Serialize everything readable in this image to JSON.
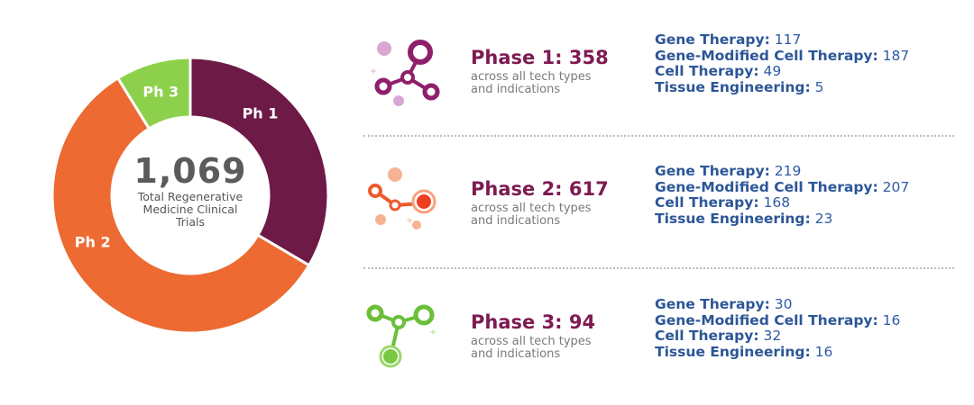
{
  "chart_data": {
    "type": "pie",
    "variant": "donut",
    "total_label": "1,069",
    "center_caption": [
      "Total Regenerative",
      "Medicine Clinical",
      "Trials"
    ],
    "categories": [
      "Ph 1",
      "Ph 2",
      "Ph 3"
    ],
    "values": [
      358,
      617,
      94
    ],
    "colors": [
      "#6d1a47",
      "#ed6a32",
      "#8dd04c"
    ]
  },
  "phases": [
    {
      "headline": "Phase 1: 358",
      "subtitle": [
        "across all tech types",
        "and indications"
      ],
      "headline_color": "#7d1b52",
      "icon": "molecule-purple-icon",
      "breakdown": [
        {
          "label": "Gene Therapy:",
          "value": "117"
        },
        {
          "label": "Gene-Modified Cell Therapy:",
          "value": "187"
        },
        {
          "label": "Cell Therapy:",
          "value": "49"
        },
        {
          "label": "Tissue Engineering:",
          "value": "5"
        }
      ]
    },
    {
      "headline": "Phase 2: 617",
      "subtitle": [
        "across all tech types",
        "and indications"
      ],
      "headline_color": "#7d1b52",
      "icon": "molecule-orange-icon",
      "breakdown": [
        {
          "label": "Gene Therapy:",
          "value": "219"
        },
        {
          "label": "Gene-Modified Cell Therapy:",
          "value": "207"
        },
        {
          "label": "Cell Therapy:",
          "value": "168"
        },
        {
          "label": "Tissue Engineering:",
          "value": "23"
        }
      ]
    },
    {
      "headline": "Phase 3: 94",
      "subtitle": [
        "across all tech types",
        "and indications"
      ],
      "headline_color": "#7d1b52",
      "icon": "molecule-green-icon",
      "breakdown": [
        {
          "label": "Gene Therapy:",
          "value": "30"
        },
        {
          "label": "Gene-Modified Cell Therapy:",
          "value": "16"
        },
        {
          "label": "Cell Therapy:",
          "value": "32"
        },
        {
          "label": "Tissue Engineering:",
          "value": "16"
        }
      ]
    }
  ]
}
